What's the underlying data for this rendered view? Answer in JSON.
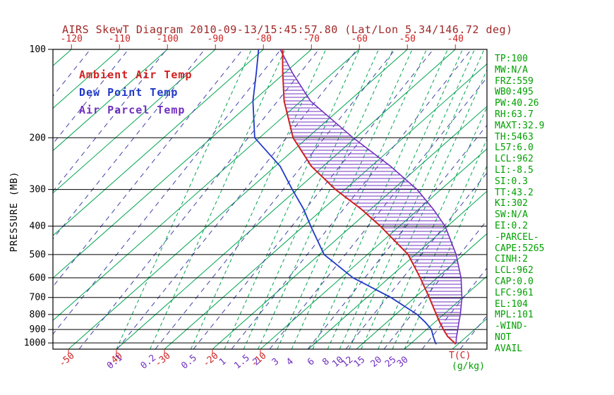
{
  "title": "AIRS SkewT Diagram 2010-09-13/15:45:57.80 (Lat/Lon 5.34/146.72 deg)",
  "legend": {
    "items": [
      {
        "label": "Ambient Air Temp",
        "color": "#d02020"
      },
      {
        "label": "Dew Point Temp",
        "color": "#2038c8"
      },
      {
        "label": "Air Parcel Temp",
        "color": "#7030c0"
      }
    ]
  },
  "axes": {
    "y_label": "PRESSURE  (MB)",
    "pressure_ticks": [
      100,
      200,
      300,
      400,
      500,
      600,
      700,
      800,
      900,
      1000
    ],
    "top_temp_ticks": [
      -120,
      -110,
      -100,
      -90,
      -80,
      -70,
      -60,
      -50,
      -40
    ],
    "bottom_temp_ticks": [
      -50,
      -40,
      -30,
      -20,
      -10
    ],
    "x_unit_label": "T(C)",
    "mixing_unit_label": "(g/kg)"
  },
  "panel": {
    "lines": [
      "TP:100",
      "MW:N/A",
      "FRZ:559",
      "WB0:495",
      "PW:40.26",
      "RH:63.7",
      "MAXT:32.9",
      "TH:5463",
      "L57:6.0",
      "LCL:962",
      "LI:-8.5",
      "SI:0.3",
      "TT:43.2",
      "KI:302",
      "SW:N/A",
      "EI:0.2",
      "-PARCEL-",
      "CAPE:5265",
      "CINH:2",
      "LCL:962",
      "CAP:0.0",
      "LFC:961",
      "EL:104",
      "MPL:101",
      "-WIND-",
      "NOT",
      "AVAIL"
    ]
  },
  "colors": {
    "title": "#a02828",
    "isotherm": "#00a550",
    "mixratio": "#00a550",
    "adiabat": "#4040a8",
    "ambient": "#d02020",
    "dewpoint": "#2038c8",
    "parcel": "#7030c0",
    "axis": "#000000",
    "top_tick_text": "#cc2222",
    "bottom_temp_text": "#cc2222",
    "mix_label_text": "#7030c0",
    "panel_text": "#00a000",
    "gkg_text": "#00a000"
  },
  "chart_data": {
    "type": "line",
    "title": "AIRS SkewT Diagram 2010-09-13/15:45:57.80 (Lat/Lon 5.34/146.72 deg)",
    "xlabel": "T(C)",
    "ylabel": "PRESSURE (MB)",
    "x_axis": {
      "bottom_labels_c": [
        -50,
        -40,
        -30,
        -20,
        -10
      ],
      "top_labels_c_at_100mb": [
        -120,
        -110,
        -100,
        -90,
        -80,
        -70,
        -60,
        -50,
        -40
      ],
      "unit": "T(C)"
    },
    "y_axis": {
      "scale": "log",
      "ticks": [
        100,
        200,
        300,
        400,
        500,
        600,
        700,
        800,
        900,
        1000
      ],
      "range": [
        100,
        1050
      ],
      "unit": "MB"
    },
    "isotherms": {
      "min": -160,
      "max": 40,
      "step": 10
    },
    "mixing_ratio_lines": [
      {
        "value": 0.1,
        "t": -40
      },
      {
        "value": 0.2,
        "t": -33
      },
      {
        "value": 0.5,
        "t": -24.5
      },
      {
        "value": 1,
        "t": -17.5
      },
      {
        "value": 1.5,
        "t": -13.5
      },
      {
        "value": 2,
        "t": -10.5
      },
      {
        "value": 3,
        "t": -6.5
      },
      {
        "value": 4,
        "t": -3.5
      },
      {
        "value": 6,
        "t": 0.9
      },
      {
        "value": 8,
        "t": 4
      },
      {
        "value": 10,
        "t": 6.5
      },
      {
        "value": 12,
        "t": 8.5
      },
      {
        "value": 15,
        "t": 11
      },
      {
        "value": 20,
        "t": 14.5
      },
      {
        "value": 25,
        "t": 17.5
      },
      {
        "value": 30,
        "t": 20
      }
    ],
    "series": [
      {
        "name": "Ambient Air Temp",
        "color": "#d02020",
        "points": [
          [
            1010,
            29.5
          ],
          [
            1000,
            29
          ],
          [
            950,
            26
          ],
          [
            900,
            23.5
          ],
          [
            850,
            21
          ],
          [
            800,
            18.5
          ],
          [
            700,
            13
          ],
          [
            600,
            6.5
          ],
          [
            500,
            -1.5
          ],
          [
            400,
            -14
          ],
          [
            350,
            -22
          ],
          [
            300,
            -32
          ],
          [
            250,
            -42.5
          ],
          [
            200,
            -53
          ],
          [
            150,
            -63.5
          ],
          [
            120,
            -70.5
          ],
          [
            100,
            -76
          ]
        ]
      },
      {
        "name": "Dew Point Temp",
        "color": "#2038c8",
        "points": [
          [
            1010,
            25.5
          ],
          [
            1000,
            25
          ],
          [
            950,
            23
          ],
          [
            900,
            21
          ],
          [
            850,
            18
          ],
          [
            800,
            14.5
          ],
          [
            700,
            5
          ],
          [
            600,
            -7.5
          ],
          [
            500,
            -19
          ],
          [
            400,
            -28.5
          ],
          [
            350,
            -34
          ],
          [
            300,
            -41
          ],
          [
            250,
            -49
          ],
          [
            200,
            -61
          ],
          [
            150,
            -70
          ],
          [
            120,
            -76
          ],
          [
            100,
            -81
          ]
        ]
      },
      {
        "name": "Air Parcel Temp",
        "color": "#7030c0",
        "points": [
          [
            1010,
            29.5
          ],
          [
            1000,
            29.3
          ],
          [
            962,
            28.2
          ],
          [
            900,
            26.5
          ],
          [
            850,
            25
          ],
          [
            800,
            23.5
          ],
          [
            700,
            19.8
          ],
          [
            600,
            15
          ],
          [
            500,
            8.5
          ],
          [
            400,
            -0.5
          ],
          [
            350,
            -7
          ],
          [
            300,
            -15
          ],
          [
            250,
            -26
          ],
          [
            200,
            -40.5
          ],
          [
            150,
            -58
          ],
          [
            120,
            -68.5
          ],
          [
            100,
            -76.5
          ]
        ]
      }
    ],
    "cape_hatch": {
      "between": [
        "Air Parcel Temp",
        "Ambient Air Temp"
      ],
      "p_from": 962,
      "p_to": 104
    }
  }
}
